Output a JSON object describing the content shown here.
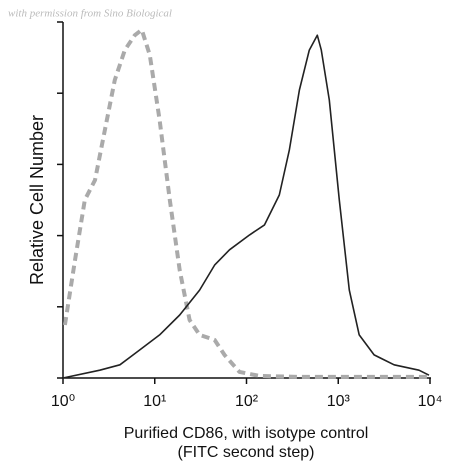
{
  "chart_data": {
    "type": "line",
    "watermark": "with permission from Sino Biological",
    "xlabel": [
      "Purified CD86, with isotype control",
      "(FITC second step)"
    ],
    "ylabel": "Relative Cell Number",
    "xscale": "log",
    "xlim": [
      1,
      10000
    ],
    "xticks": [
      {
        "value": 1,
        "label": "10⁰"
      },
      {
        "value": 10,
        "label": "10¹"
      },
      {
        "value": 100,
        "label": "10²"
      },
      {
        "value": 1000,
        "label": "10³"
      },
      {
        "value": 10000,
        "label": "10⁴"
      }
    ],
    "ylim": [
      0,
      100
    ],
    "yticks": [
      0,
      20,
      40,
      60,
      80,
      100
    ],
    "series": [
      {
        "color": "#aaaaaa",
        "dashed": true,
        "x": [
          1.05,
          1.35,
          1.73,
          2.23,
          2.86,
          3.67,
          4.72,
          6.06,
          7.22,
          8.83,
          11.3,
          14.6,
          18.7,
          24.0,
          30.8,
          44.9,
          57.6,
          83.9,
          138,
          377,
          9750
        ],
        "values": [
          14.9,
          33.1,
          50,
          55.6,
          69.7,
          83.7,
          92.1,
          96.3,
          97.8,
          90.7,
          72.5,
          50,
          30.3,
          16.3,
          12.1,
          10.7,
          6.5,
          1.7,
          0.6,
          0.3,
          0.3
        ]
      },
      {
        "color": "#222222",
        "dashed": false,
        "x": [
          1,
          2.52,
          4.17,
          6.87,
          11.3,
          18.7,
          30.8,
          44.9,
          65.3,
          108,
          157,
          228,
          293,
          377,
          484,
          591,
          653,
          798,
          1026,
          1318,
          1691,
          2460,
          4060,
          7590,
          9750
        ],
        "values": [
          0,
          2.2,
          3.7,
          7.9,
          12.1,
          17.7,
          24.7,
          31.7,
          36,
          40.2,
          43,
          51.4,
          64,
          80.9,
          92.1,
          96.3,
          92.1,
          78.1,
          50,
          24.7,
          12.1,
          6.5,
          3.7,
          2.2,
          0.8
        ]
      }
    ]
  }
}
